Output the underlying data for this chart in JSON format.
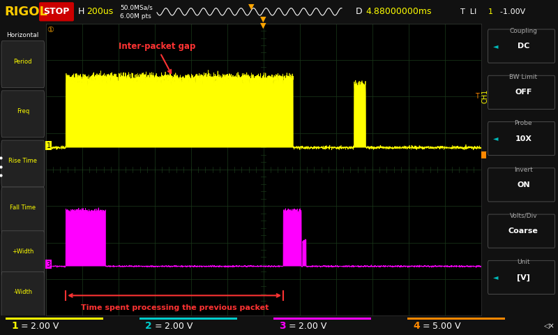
{
  "bg_color": "#000000",
  "grid_color": "#1a3a1a",
  "top_bar_bg": "#111111",
  "rigol_color": "#ffcc00",
  "stop_bg": "#cc0000",
  "ch1_color": "#ffff00",
  "ch3_color": "#ff00ff",
  "annotation_color": "#ff3333",
  "grid_cols": 12,
  "grid_rows": 8,
  "ch1_baseline": 4.6,
  "ch1_high": 6.5,
  "ch1_noise": 0.07,
  "ch3_baseline": 1.35,
  "ch3_high": 2.85,
  "ch3_noise": 0.035,
  "interpacket_label": "Inter-packet gap",
  "processing_label": "Time spent processing the previous packet",
  "bottom_ch_labels": [
    "1",
    "2",
    "3",
    "4"
  ],
  "bottom_ch_colors": [
    "#ffff00",
    "#00cccc",
    "#ff00ff",
    "#ff8800"
  ],
  "bottom_volt_labels": [
    "2.00 V",
    "2.00 V",
    "2.00 V",
    "5.00 V"
  ],
  "right_sections": [
    [
      "Coupling",
      "DC",
      true
    ],
    [
      "BW Limit",
      "OFF",
      false
    ],
    [
      "Probe",
      "10X",
      true
    ],
    [
      "Invert",
      "ON",
      false
    ],
    [
      "Volts/Div",
      "Coarse",
      false
    ],
    [
      "Unit",
      "[V]",
      true
    ]
  ]
}
